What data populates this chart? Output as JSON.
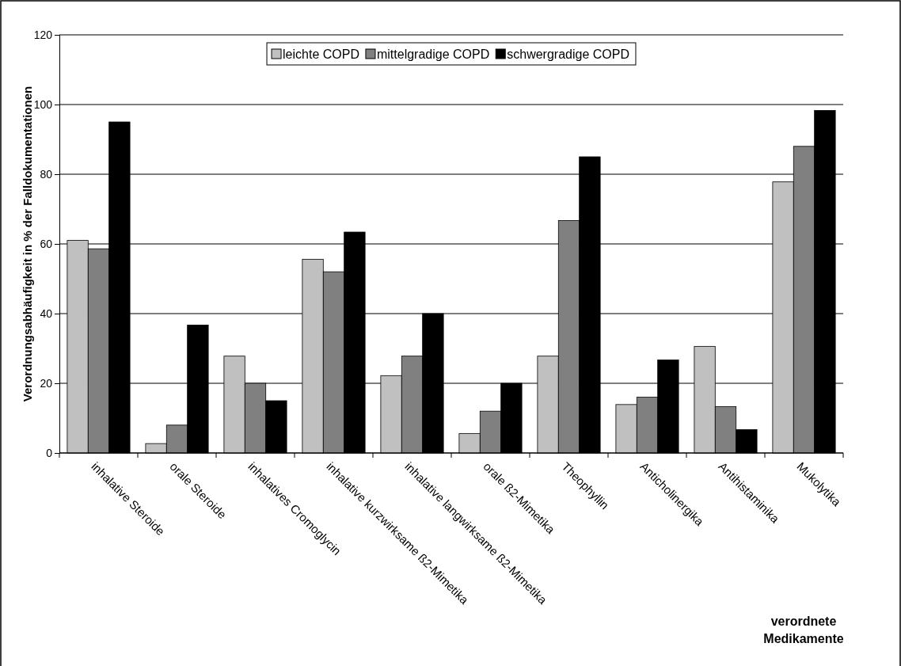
{
  "chart_data": {
    "type": "bar",
    "ylabel": "Verordnungsabhäufigkeit in % der Falldokumentationen",
    "xlabel": "verordnete Medikamente",
    "categories": [
      "inhalative Steroide",
      "orale Steroide",
      "inhalatives Cromoglycin",
      "inhalative kurzwirksame ß2-Mimetika",
      "inhalative langwirksame ß2-Mimetika",
      "orale ß2-Mimetika",
      "Theophyllin",
      "Anticholinergika",
      "Antihistaminika",
      "Mukolytika"
    ],
    "series": [
      {
        "name": "leichte COPD",
        "color": "#c0c0c0",
        "values": [
          61,
          2.7,
          27.8,
          55.6,
          22.2,
          5.6,
          27.8,
          13.9,
          30.6,
          77.8
        ]
      },
      {
        "name": "mittelgradige COPD",
        "color": "#808080",
        "values": [
          58.6,
          8,
          20,
          52,
          27.8,
          12,
          66.7,
          16,
          13.3,
          88
        ]
      },
      {
        "name": "schwergradige COPD",
        "color": "#000000",
        "values": [
          95,
          36.7,
          15,
          63.4,
          40,
          20,
          85,
          26.7,
          6.7,
          98.3
        ]
      }
    ],
    "ylim": [
      0,
      120
    ],
    "yticks": [
      0,
      20,
      40,
      60,
      80,
      100,
      120
    ],
    "grid": "y",
    "legend": "top"
  }
}
